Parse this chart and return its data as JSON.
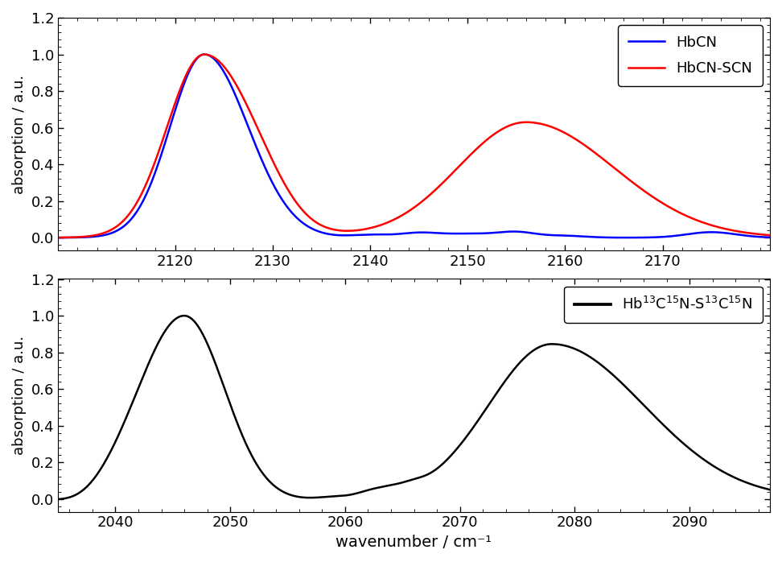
{
  "top_panel": {
    "xmin": 2108,
    "xmax": 2181,
    "ymin": -0.07,
    "ymax": 1.2,
    "yticks": [
      0.0,
      0.2,
      0.4,
      0.6,
      0.8,
      1.0,
      1.2
    ],
    "xticks": [
      2120,
      2130,
      2140,
      2150,
      2160,
      2170
    ],
    "ylabel": "absorption / a.u.",
    "legend_labels": [
      "HbCN",
      "HbCN-SCN"
    ],
    "legend_colors": [
      "blue",
      "red"
    ]
  },
  "bottom_panel": {
    "xmin": 2035,
    "xmax": 2097,
    "ymin": -0.07,
    "ymax": 1.2,
    "yticks": [
      0.0,
      0.2,
      0.4,
      0.6,
      0.8,
      1.0,
      1.2
    ],
    "xticks": [
      2040,
      2050,
      2060,
      2070,
      2080,
      2090
    ],
    "ylabel": "absorption / a.u.",
    "xlabel": "wavenumber / cm⁻¹"
  },
  "figure_bgcolor": "#ffffff",
  "linewidth": 1.8
}
